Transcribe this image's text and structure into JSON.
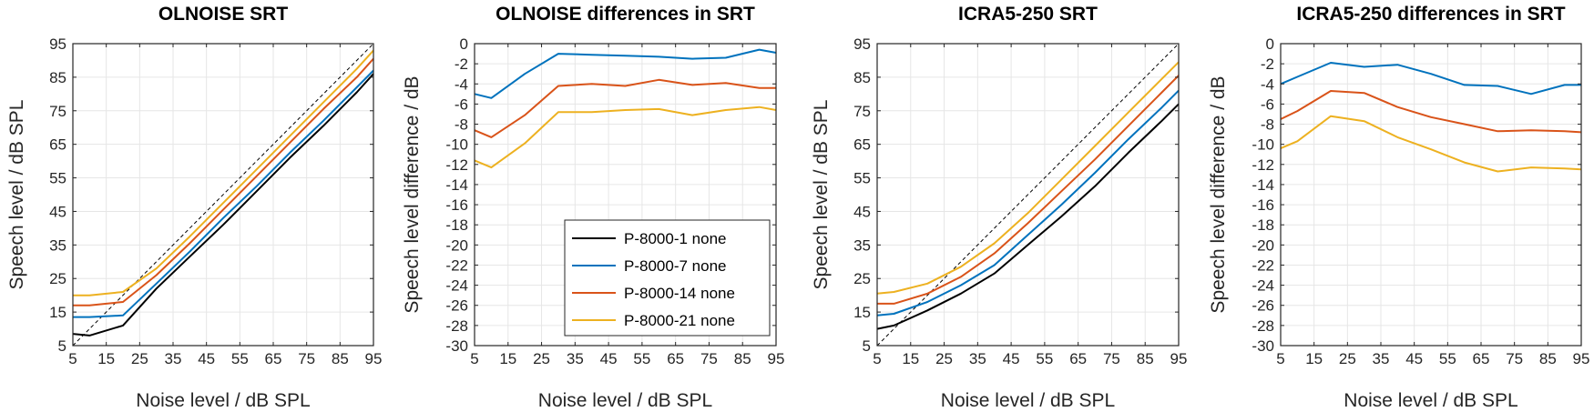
{
  "colors": {
    "P-8000-1 none": "#000000",
    "P-8000-7 none": "#0072BD",
    "P-8000-14 none": "#D95319",
    "P-8000-21 none": "#EDB120",
    "grid": "#e6e6e6",
    "reference": "#000000"
  },
  "legend": {
    "entries": [
      "P-8000-1 none",
      "P-8000-7 none",
      "P-8000-14 none",
      "P-8000-21 none"
    ],
    "placement": "lower-right of second panel"
  },
  "chart_data": [
    {
      "type": "line",
      "title": "OLNOISE SRT",
      "xlabel": "Noise level / dB SPL",
      "ylabel": "Speech level / dB SPL",
      "xlim": [
        5,
        95
      ],
      "ylim": [
        5,
        95
      ],
      "xticks": [
        5,
        15,
        25,
        35,
        45,
        55,
        65,
        75,
        85,
        95
      ],
      "yticks": [
        5,
        15,
        25,
        35,
        45,
        55,
        65,
        75,
        85,
        95
      ],
      "grid": true,
      "reference_line": "y = x (dashed)",
      "x": [
        5,
        10,
        20,
        30,
        40,
        50,
        60,
        70,
        80,
        90,
        95
      ],
      "series": [
        {
          "name": "P-8000-1 none",
          "values": [
            8.5,
            8,
            11,
            22,
            31.5,
            41,
            51,
            61,
            70.5,
            80.5,
            86
          ]
        },
        {
          "name": "P-8000-7 none",
          "values": [
            13.5,
            13.5,
            14,
            23.5,
            33,
            43,
            52.5,
            62.5,
            72,
            82,
            87
          ]
        },
        {
          "name": "P-8000-14 none",
          "values": [
            17,
            17,
            18,
            26,
            35.5,
            45.5,
            55.5,
            65.5,
            75.5,
            85,
            90.5
          ]
        },
        {
          "name": "P-8000-21 none",
          "values": [
            20,
            20,
            21,
            28,
            37.5,
            47.5,
            57.5,
            67.5,
            77.5,
            87.5,
            93
          ]
        }
      ]
    },
    {
      "type": "line",
      "title": "OLNOISE differences in SRT",
      "xlabel": "Noise level / dB SPL",
      "ylabel": "Speech level difference / dB",
      "xlim": [
        5,
        95
      ],
      "ylim": [
        -30,
        0
      ],
      "xticks": [
        5,
        15,
        25,
        35,
        45,
        55,
        65,
        75,
        85,
        95
      ],
      "yticks": [
        0,
        -2,
        -4,
        -6,
        -8,
        -10,
        -12,
        -14,
        -16,
        -18,
        -20,
        -22,
        -24,
        -26,
        -28,
        -30
      ],
      "grid": true,
      "legend": true,
      "x": [
        5,
        10,
        20,
        30,
        40,
        50,
        60,
        70,
        80,
        90,
        95
      ],
      "series": [
        {
          "name": "P-8000-7 none",
          "values": [
            -5,
            -5.4,
            -3,
            -1,
            -1.1,
            -1.2,
            -1.3,
            -1.5,
            -1.4,
            -0.6,
            -0.9
          ]
        },
        {
          "name": "P-8000-14 none",
          "values": [
            -8.6,
            -9.3,
            -7.1,
            -4.2,
            -4,
            -4.2,
            -3.6,
            -4.1,
            -3.9,
            -4.4,
            -4.4
          ]
        },
        {
          "name": "P-8000-21 none",
          "values": [
            -11.6,
            -12.3,
            -9.9,
            -6.8,
            -6.8,
            -6.6,
            -6.5,
            -7.1,
            -6.6,
            -6.3,
            -6.6
          ]
        }
      ]
    },
    {
      "type": "line",
      "title": "ICRA5-250 SRT",
      "xlabel": "Noise level / dB SPL",
      "ylabel": "Speech level / dB SPL",
      "xlim": [
        5,
        95
      ],
      "ylim": [
        5,
        95
      ],
      "xticks": [
        5,
        15,
        25,
        35,
        45,
        55,
        65,
        75,
        85,
        95
      ],
      "yticks": [
        5,
        15,
        25,
        35,
        45,
        55,
        65,
        75,
        85,
        95
      ],
      "grid": true,
      "reference_line": "y = x (dashed)",
      "x": [
        5,
        10,
        20,
        30,
        40,
        50,
        60,
        70,
        80,
        90,
        95
      ],
      "series": [
        {
          "name": "P-8000-1 none",
          "values": [
            10,
            11,
            15.5,
            20.5,
            26.5,
            35,
            43.5,
            52.5,
            62.5,
            72,
            77
          ]
        },
        {
          "name": "P-8000-7 none",
          "values": [
            14,
            14.5,
            18,
            23,
            29,
            38,
            47,
            56.5,
            66.5,
            76,
            81
          ]
        },
        {
          "name": "P-8000-14 none",
          "values": [
            17.5,
            17.5,
            20.5,
            25.5,
            32.5,
            41.5,
            51,
            60.5,
            70.5,
            80.5,
            85.5
          ]
        },
        {
          "name": "P-8000-21 none",
          "values": [
            20.5,
            21,
            23.5,
            28.5,
            35.5,
            44.5,
            54.5,
            64.5,
            74.5,
            84.5,
            89.5
          ]
        }
      ]
    },
    {
      "type": "line",
      "title": "ICRA5-250 differences in SRT",
      "xlabel": "Noise level / dB SPL",
      "ylabel": "Speech level difference / dB",
      "xlim": [
        5,
        95
      ],
      "ylim": [
        -30,
        0
      ],
      "xticks": [
        5,
        15,
        25,
        35,
        45,
        55,
        65,
        75,
        85,
        95
      ],
      "yticks": [
        0,
        -2,
        -4,
        -6,
        -8,
        -10,
        -12,
        -14,
        -16,
        -18,
        -20,
        -22,
        -24,
        -26,
        -28,
        -30
      ],
      "grid": true,
      "x": [
        5,
        10,
        20,
        30,
        40,
        50,
        60,
        70,
        80,
        90,
        95
      ],
      "series": [
        {
          "name": "P-8000-7 none",
          "values": [
            -4,
            -3.3,
            -1.9,
            -2.3,
            -2.1,
            -3,
            -4.1,
            -4.2,
            -5,
            -4.1,
            -4.1
          ]
        },
        {
          "name": "P-8000-14 none",
          "values": [
            -7.5,
            -6.7,
            -4.7,
            -4.9,
            -6.3,
            -7.3,
            -8,
            -8.7,
            -8.6,
            -8.7,
            -8.8
          ]
        },
        {
          "name": "P-8000-21 none",
          "values": [
            -10.4,
            -9.7,
            -7.2,
            -7.7,
            -9.3,
            -10.5,
            -11.8,
            -12.7,
            -12.3,
            -12.4,
            -12.5
          ]
        }
      ]
    }
  ]
}
